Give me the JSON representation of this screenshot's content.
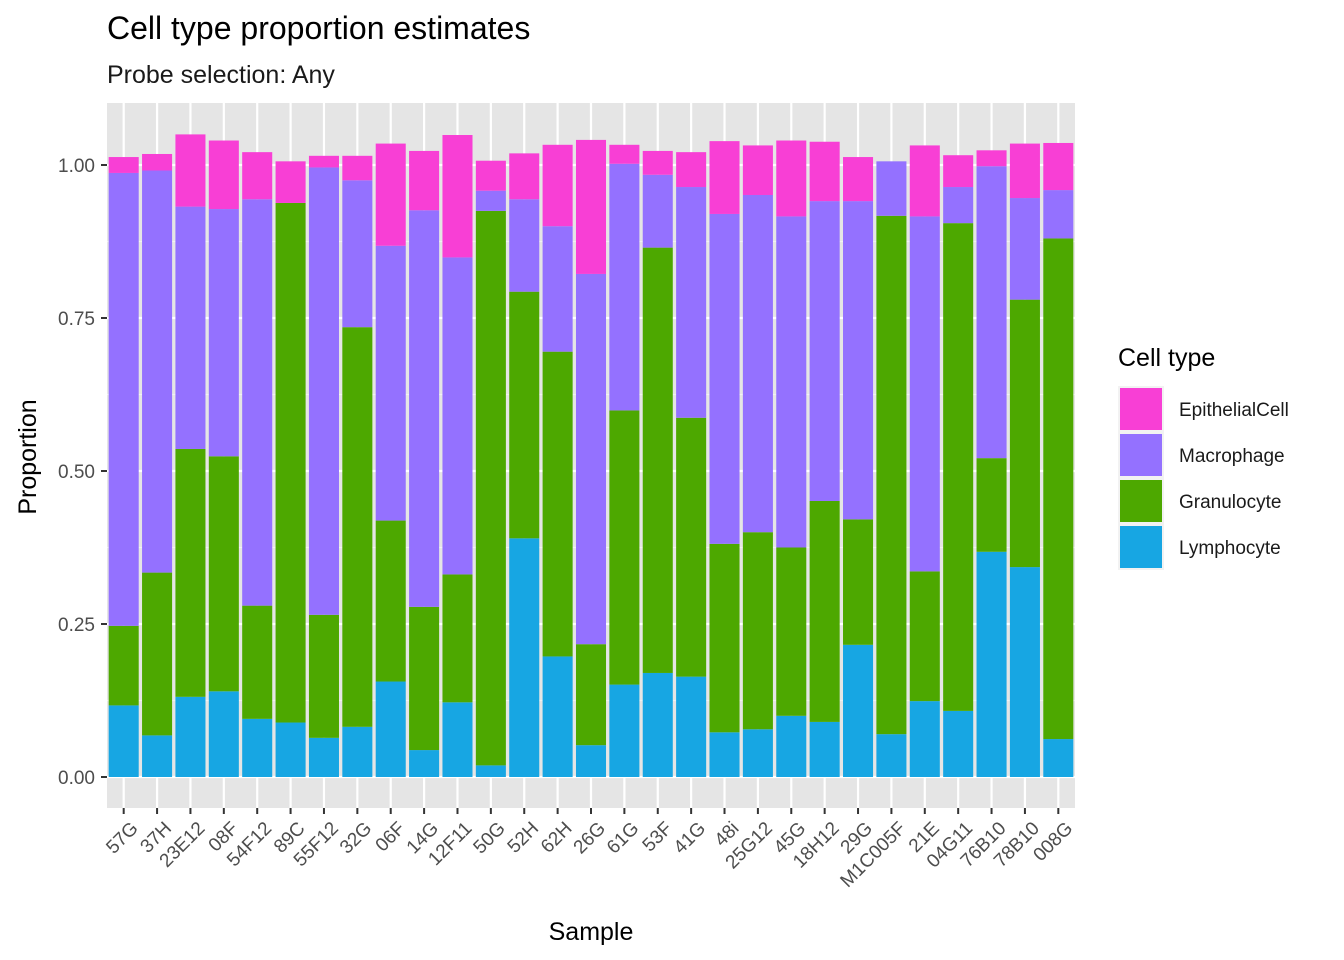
{
  "chart_data": {
    "type": "bar",
    "stacked": true,
    "title": "Cell type proportion estimates",
    "subtitle": "Probe selection: Any",
    "xlabel": "Sample",
    "ylabel": "Proportion",
    "ylim": [
      -0.05,
      1.1
    ],
    "yticks": [
      "0.00",
      "0.25",
      "0.50",
      "0.75",
      "1.00"
    ],
    "grid": true,
    "legend_position": "right",
    "legend_title": "Cell type",
    "categories": [
      "57G",
      "37H",
      "23E12",
      "08F",
      "54F12",
      "89C",
      "55F12",
      "32G",
      "06F",
      "14G",
      "12F11",
      "50G",
      "52H",
      "62H",
      "26G",
      "61G",
      "53F",
      "41G",
      "48i",
      "25G12",
      "45G",
      "18H12",
      "29G",
      "M1C005F",
      "21E",
      "04G11",
      "76B10",
      "78B10",
      "008G"
    ],
    "series": [
      {
        "name": "Lymphocyte",
        "color": "#17A6E3",
        "values": [
          0.117,
          0.068,
          0.131,
          0.14,
          0.095,
          0.089,
          0.064,
          0.082,
          0.156,
          0.044,
          0.122,
          0.019,
          0.39,
          0.197,
          0.052,
          0.151,
          0.17,
          0.164,
          0.073,
          0.078,
          0.1,
          0.09,
          0.216,
          0.07,
          0.124,
          0.108,
          0.368,
          0.343,
          0.062
        ]
      },
      {
        "name": "Granulocyte",
        "color": "#4DA800",
        "values": [
          0.13,
          0.266,
          0.405,
          0.384,
          0.185,
          0.849,
          0.201,
          0.653,
          0.263,
          0.234,
          0.209,
          0.906,
          0.403,
          0.498,
          0.165,
          0.448,
          0.695,
          0.423,
          0.308,
          0.322,
          0.275,
          0.361,
          0.205,
          0.847,
          0.212,
          0.797,
          0.153,
          0.437,
          0.818
        ]
      },
      {
        "name": "Macrophage",
        "color": "#9471FF",
        "values": [
          0.74,
          0.657,
          0.396,
          0.404,
          0.664,
          0.0,
          0.731,
          0.24,
          0.449,
          0.648,
          0.518,
          0.033,
          0.151,
          0.205,
          0.605,
          0.403,
          0.119,
          0.377,
          0.539,
          0.551,
          0.541,
          0.49,
          0.52,
          0.089,
          0.58,
          0.059,
          0.477,
          0.166,
          0.079
        ]
      },
      {
        "name": "EpithelialCell",
        "color": "#F83FD5",
        "values": [
          0.026,
          0.027,
          0.118,
          0.112,
          0.077,
          0.068,
          0.019,
          0.04,
          0.167,
          0.097,
          0.2,
          0.049,
          0.075,
          0.133,
          0.219,
          0.031,
          0.039,
          0.057,
          0.119,
          0.081,
          0.124,
          0.097,
          0.072,
          0.0,
          0.116,
          0.052,
          0.026,
          0.089,
          0.077
        ]
      }
    ]
  }
}
